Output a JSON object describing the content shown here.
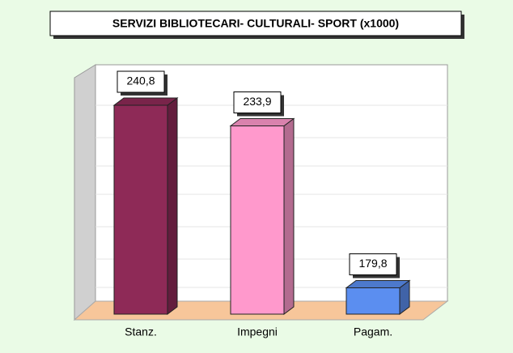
{
  "chart_data": {
    "type": "bar3d",
    "title": "SERVIZI BIBLIOTECARI- CULTURALI- SPORT (x1000)",
    "categories": [
      "Stanz.",
      "Impegni",
      "Pagam."
    ],
    "values": [
      240.8,
      233.9,
      179.8
    ],
    "value_labels": [
      "240,8",
      "233,9",
      "179,8"
    ],
    "colors": [
      "#8e2a57",
      "#ff99cc",
      "#5b8ef0"
    ],
    "ylim": [
      171,
      250
    ]
  }
}
